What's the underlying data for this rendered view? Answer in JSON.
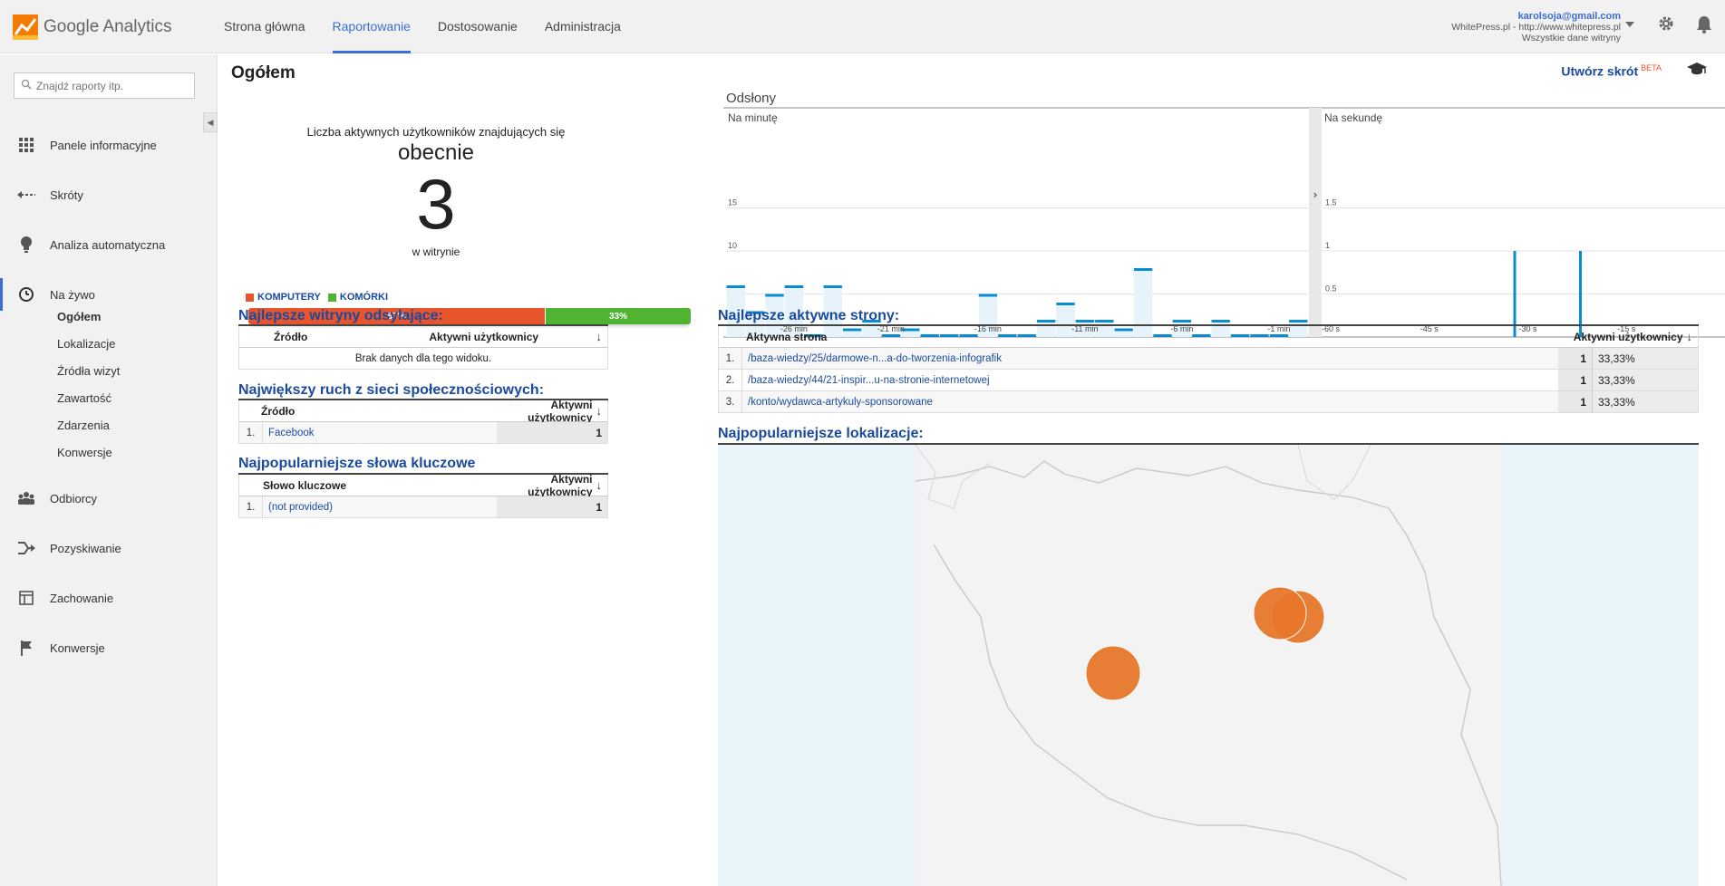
{
  "app": {
    "logo_text": "Google Analytics"
  },
  "topnav": [
    {
      "label": "Strona główna",
      "active": false
    },
    {
      "label": "Raportowanie",
      "active": true
    },
    {
      "label": "Dostosowanie",
      "active": false
    },
    {
      "label": "Administracja",
      "active": false
    }
  ],
  "account": {
    "email": "karolsoja@gmail.com",
    "property": "WhitePress.pl - http://www.whitepress.pl",
    "view": "Wszystkie dane witryny"
  },
  "sidebar": {
    "search_placeholder": "Znajdź raporty itp.",
    "items": [
      {
        "label": "Panele informacyjne",
        "icon": "grid-icon"
      },
      {
        "label": "Skróty",
        "icon": "shortcut-arrows-icon"
      },
      {
        "label": "Analiza automatyczna",
        "icon": "lightbulb-icon"
      },
      {
        "label": "Na żywo",
        "icon": "clock-icon",
        "active": true
      },
      {
        "label": "Odbiorcy",
        "icon": "people-icon"
      },
      {
        "label": "Pozyskiwanie",
        "icon": "merge-arrows-icon"
      },
      {
        "label": "Zachowanie",
        "icon": "layout-icon"
      },
      {
        "label": "Konwersje",
        "icon": "flag-icon"
      }
    ],
    "sub_items": [
      {
        "label": "Ogółem",
        "active": true
      },
      {
        "label": "Lokalizacje"
      },
      {
        "label": "Źródła wizyt"
      },
      {
        "label": "Zawartość"
      },
      {
        "label": "Zdarzenia"
      },
      {
        "label": "Konwersje"
      }
    ]
  },
  "main": {
    "title": "Ogółem",
    "shortcut_label": "Utwórz skrót",
    "shortcut_badge": "BETA"
  },
  "active_users": {
    "label": "Liczba aktywnych użytkowników znajdujących się",
    "now": "obecnie",
    "count": "3",
    "site": "w witrynie",
    "legend": [
      {
        "label": "KOMPUTERY",
        "color": "#e8552c"
      },
      {
        "label": "KOMÓRKI",
        "color": "#50b432"
      }
    ],
    "desktop_pct": "67%",
    "mobile_pct": "33%",
    "desktop_fraction": 0.67
  },
  "chart_data": {
    "type": "bar",
    "title": "Odsłony",
    "per_minute": {
      "label": "Na minutę",
      "y_ticks": [
        "5",
        "10",
        "15"
      ],
      "ylim": [
        0,
        20
      ],
      "x_ticks": [
        "-26 min",
        "-21 min",
        "-16 min",
        "-11 min",
        "-6 min",
        "-1 min"
      ],
      "values": [
        6,
        3,
        5,
        6,
        0,
        6,
        1,
        2,
        0,
        1,
        0,
        0,
        0,
        5,
        0,
        0,
        2,
        4,
        2,
        2,
        1,
        8,
        0,
        2,
        0,
        2,
        0,
        0,
        0,
        2
      ]
    },
    "per_second": {
      "label": "Na sekundę",
      "y_ticks": [
        "0.5",
        "1",
        "1.5"
      ],
      "ylim": [
        0,
        2
      ],
      "x_ticks": [
        "-60 s",
        "-45 s",
        "-30 s",
        "-15 s"
      ],
      "spikes_at": [
        -32,
        -22
      ],
      "spike_value": 1
    }
  },
  "referrers": {
    "title": "Najlepsze witryny odsyłające:",
    "col_source": "Źródło",
    "col_users": "Aktywni użytkownicy",
    "empty": "Brak danych dla tego widoku."
  },
  "social": {
    "title": "Największy ruch z sieci społecznościowych:",
    "col_source": "Źródło",
    "col_users": "Aktywni użytkownicy",
    "rows": [
      {
        "idx": "1.",
        "source": "Facebook",
        "users": "1"
      }
    ]
  },
  "keywords": {
    "title": "Najpopularniejsze słowa kluczowe",
    "col_keyword": "Słowo kluczowe",
    "col_users": "Aktywni użytkownicy",
    "rows": [
      {
        "idx": "1.",
        "keyword": "(not provided)",
        "users": "1"
      }
    ]
  },
  "pages": {
    "title": "Najlepsze aktywne strony:",
    "col_page": "Aktywna strona",
    "col_users": "Aktywni użytkownicy",
    "rows": [
      {
        "idx": "1.",
        "page": "/baza-wiedzy/25/darmowe-n...a-do-tworzenia-infografik",
        "users": "1",
        "pct": "33,33%"
      },
      {
        "idx": "2.",
        "page": "/baza-wiedzy/44/21-inspir...u-na-stronie-internetowej",
        "users": "1",
        "pct": "33,33%"
      },
      {
        "idx": "3.",
        "page": "/konto/wydawca-artykuly-sponsorowane",
        "users": "1",
        "pct": "33,33%"
      }
    ]
  },
  "locations": {
    "title": "Najpopularniejsze lokalizacje:"
  }
}
